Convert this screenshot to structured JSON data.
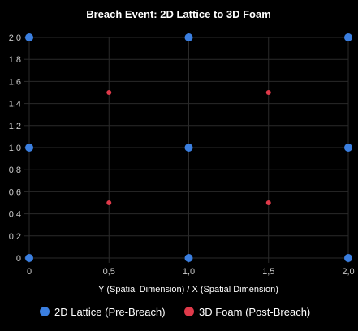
{
  "chart_data": {
    "type": "scatter",
    "title": "Breach Event: 2D Lattice to 3D Foam",
    "xlabel": "Y (Spatial Dimension) / X (Spatial Dimension)",
    "ylabel": "",
    "xlim": [
      0,
      2
    ],
    "ylim": [
      0,
      2
    ],
    "x_ticks": [
      {
        "value": 0,
        "label": "0"
      },
      {
        "value": 0.5,
        "label": "0,5"
      },
      {
        "value": 1,
        "label": "1,0"
      },
      {
        "value": 1.5,
        "label": "1,5"
      },
      {
        "value": 2,
        "label": "2,0"
      }
    ],
    "y_ticks": [
      {
        "value": 0,
        "label": "0"
      },
      {
        "value": 0.2,
        "label": "0,2"
      },
      {
        "value": 0.4,
        "label": "0,4"
      },
      {
        "value": 0.6,
        "label": "0,6"
      },
      {
        "value": 0.8,
        "label": "0,8"
      },
      {
        "value": 1.0,
        "label": "1,0"
      },
      {
        "value": 1.2,
        "label": "1,2"
      },
      {
        "value": 1.4,
        "label": "1,4"
      },
      {
        "value": 1.6,
        "label": "1,6"
      },
      {
        "value": 1.8,
        "label": "1,8"
      },
      {
        "value": 2.0,
        "label": "2,0"
      }
    ],
    "grid": true,
    "legend_position": "bottom",
    "series": [
      {
        "name": "2D Lattice (Pre-Breach)",
        "color": "#3b7fe0",
        "points": [
          {
            "x": 0,
            "y": 0
          },
          {
            "x": 1,
            "y": 0
          },
          {
            "x": 2,
            "y": 0
          },
          {
            "x": 0,
            "y": 1
          },
          {
            "x": 1,
            "y": 1
          },
          {
            "x": 2,
            "y": 1
          },
          {
            "x": 0,
            "y": 2
          },
          {
            "x": 1,
            "y": 2
          },
          {
            "x": 2,
            "y": 2
          }
        ]
      },
      {
        "name": "3D Foam (Post-Breach)",
        "color": "#e03a4a",
        "points": [
          {
            "x": 0.5,
            "y": 0.5
          },
          {
            "x": 1.5,
            "y": 0.5
          },
          {
            "x": 0.5,
            "y": 1.5
          },
          {
            "x": 1.5,
            "y": 1.5
          }
        ]
      }
    ]
  },
  "colors": {
    "background": "#000000",
    "grid": "#2a2a2a",
    "tick_label": "#c9c9c9",
    "text": "#ffffff"
  }
}
